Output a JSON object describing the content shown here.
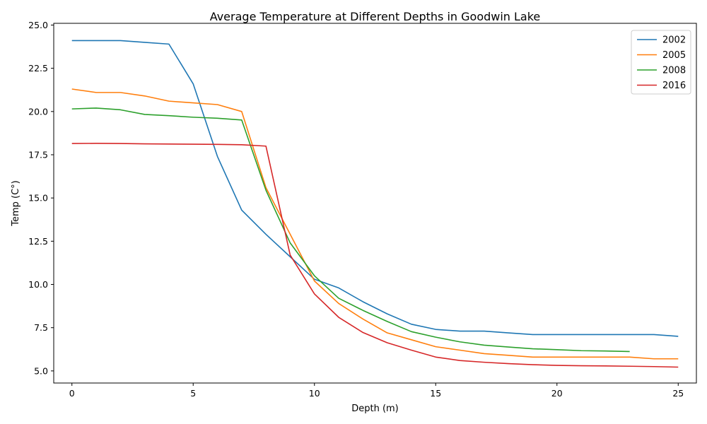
{
  "chart_data": {
    "type": "line",
    "title": "Average Temperature at Different Depths in Goodwin Lake",
    "xlabel": "Depth (m)",
    "ylabel": "Temp (C°)",
    "xlim": [
      -0.75,
      25.75
    ],
    "ylim": [
      4.3,
      25.1
    ],
    "x_ticks": [
      0,
      5,
      10,
      15,
      20,
      25
    ],
    "x_tick_labels": [
      "0",
      "5",
      "10",
      "15",
      "20",
      "25"
    ],
    "y_ticks": [
      5.0,
      7.5,
      10.0,
      12.5,
      15.0,
      17.5,
      20.0,
      22.5,
      25.0
    ],
    "y_tick_labels": [
      "5.0",
      "7.5",
      "10.0",
      "12.5",
      "15.0",
      "17.5",
      "20.0",
      "22.5",
      "25.0"
    ],
    "grid": false,
    "legend_position": "top-right",
    "series": [
      {
        "name": "2002",
        "color": "#1f77b4",
        "x": [
          0,
          1,
          2,
          3,
          4,
          5,
          6,
          7,
          8,
          9,
          10,
          11,
          12,
          13,
          14,
          15,
          16,
          17,
          18,
          19,
          20,
          21,
          22,
          23,
          24,
          25
        ],
        "values": [
          24.1,
          24.1,
          24.1,
          24.0,
          23.9,
          21.6,
          17.4,
          14.3,
          12.9,
          11.6,
          10.3,
          9.8,
          9.0,
          8.3,
          7.7,
          7.4,
          7.3,
          7.3,
          7.2,
          7.1,
          7.1,
          7.1,
          7.1,
          7.1,
          7.1,
          7.0
        ]
      },
      {
        "name": "2005",
        "color": "#ff7f0e",
        "x": [
          0,
          1,
          2,
          3,
          4,
          5,
          6,
          7,
          8,
          9,
          10,
          11,
          12,
          13,
          14,
          15,
          16,
          17,
          18,
          19,
          20,
          21,
          22,
          23,
          24,
          25
        ],
        "values": [
          21.3,
          21.1,
          21.1,
          20.9,
          20.6,
          20.5,
          20.4,
          20.0,
          15.6,
          12.9,
          10.2,
          8.9,
          8.0,
          7.2,
          6.8,
          6.4,
          6.2,
          6.0,
          5.9,
          5.8,
          5.8,
          5.8,
          5.8,
          5.8,
          5.7,
          5.7
        ]
      },
      {
        "name": "2008",
        "color": "#2ca02c",
        "x": [
          0,
          1,
          2,
          3,
          4,
          5,
          6,
          7,
          8,
          9,
          10,
          11,
          12,
          13,
          14,
          15,
          16,
          17,
          18,
          19,
          20,
          21,
          22,
          23
        ],
        "values": [
          20.15,
          20.2,
          20.1,
          19.83,
          19.76,
          19.67,
          19.61,
          19.51,
          15.45,
          12.4,
          10.5,
          9.2,
          8.5,
          7.86,
          7.27,
          6.95,
          6.68,
          6.49,
          6.38,
          6.28,
          6.23,
          6.17,
          6.15,
          6.12
        ]
      },
      {
        "name": "2016",
        "color": "#d62728",
        "x": [
          0,
          1,
          2,
          3,
          4,
          5,
          6,
          7,
          8,
          9,
          10,
          11,
          12,
          13,
          14,
          15,
          16,
          17,
          18,
          19,
          20,
          21,
          22,
          23,
          24,
          25
        ],
        "values": [
          18.15,
          18.16,
          18.15,
          18.13,
          18.12,
          18.11,
          18.1,
          18.08,
          18.0,
          11.7,
          9.45,
          8.1,
          7.22,
          6.63,
          6.2,
          5.8,
          5.6,
          5.5,
          5.42,
          5.36,
          5.32,
          5.3,
          5.29,
          5.27,
          5.25,
          5.22
        ]
      }
    ]
  }
}
